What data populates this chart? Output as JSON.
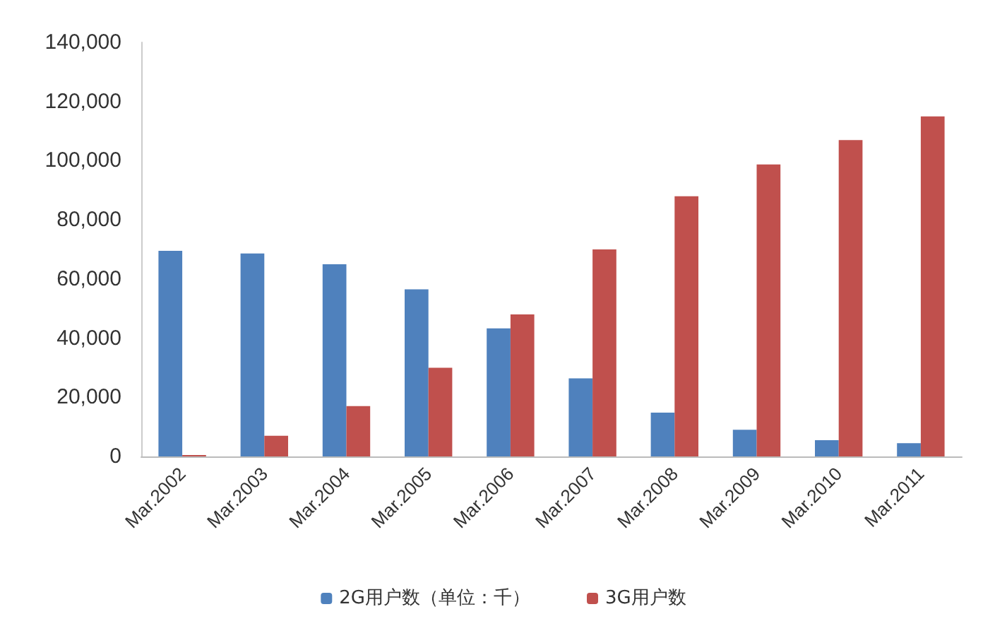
{
  "chart_data": {
    "type": "bar",
    "categories": [
      "Mar.2002",
      "Mar.2003",
      "Mar.2004",
      "Mar.2005",
      "Mar.2006",
      "Mar.2007",
      "Mar.2008",
      "Mar.2009",
      "Mar.2010",
      "Mar.2011"
    ],
    "series": [
      {
        "name": "2G用户数（单位：千）",
        "color": "#4f81bd",
        "values": [
          69500,
          68600,
          65000,
          56500,
          43300,
          26400,
          14800,
          9000,
          5500,
          4500
        ]
      },
      {
        "name": "3G用户数",
        "color": "#c0504d",
        "values": [
          500,
          7000,
          17000,
          30000,
          48000,
          70000,
          88000,
          98700,
          107000,
          115000
        ]
      }
    ],
    "ylim": [
      0,
      140000
    ],
    "yticks": [
      0,
      {
        "value": 20000,
        "label": "20,000"
      },
      {
        "value": 40000,
        "label": "40,000"
      },
      {
        "value": 60000,
        "label": "60,000"
      },
      {
        "value": 80000,
        "label": "80,000"
      },
      {
        "value": 100000,
        "label": "100,000"
      },
      {
        "value": 120000,
        "label": "120,000"
      },
      {
        "value": 140000,
        "label": "140,000"
      }
    ],
    "grid": false,
    "legend": "bottom"
  }
}
